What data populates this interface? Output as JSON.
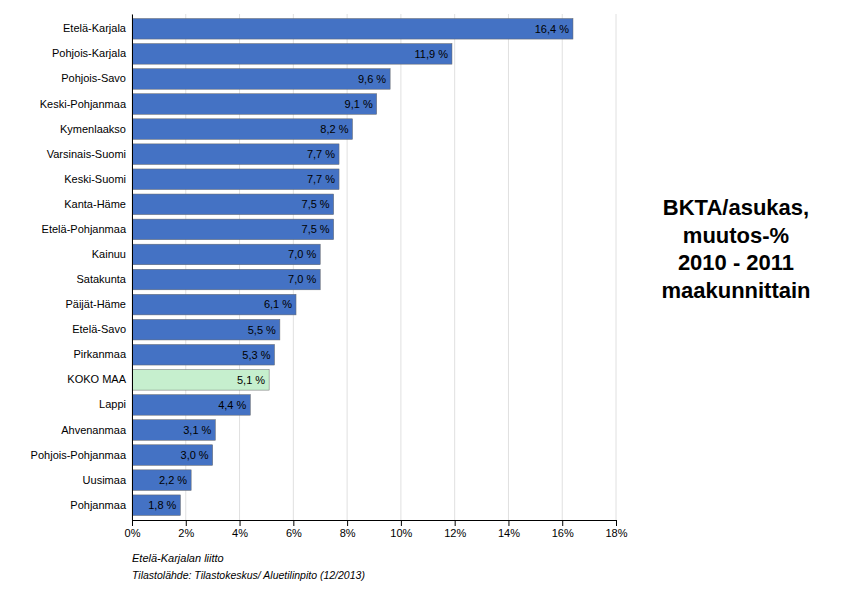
{
  "chart_data": {
    "type": "bar",
    "orientation": "horizontal",
    "title": "BKTA/asukas,\nmuutos-%\n2010 - 2011\nmaakunnittain",
    "annotations": [
      "Etelä-Karjalan liitto",
      "Tilastolähde: Tilastokeskus/ Aluetilinpito (12/2013)"
    ],
    "categories": [
      "Pohjanmaa",
      "Uusimaa",
      "Pohjois-Pohjanmaa",
      "Ahvenanmaa",
      "Lappi",
      "KOKO MAA",
      "Pirkanmaa",
      "Etelä-Savo",
      "Päijät-Häme",
      "Satakunta",
      "Kainuu",
      "Etelä-Pohjanmaa",
      "Kanta-Häme",
      "Keski-Suomi",
      "Varsinais-Suomi",
      "Kymenlaakso",
      "Keski-Pohjanmaa",
      "Pohjois-Savo",
      "Pohjois-Karjala",
      "Etelä-Karjala"
    ],
    "values": [
      1.8,
      2.2,
      3.0,
      3.1,
      4.4,
      5.1,
      5.3,
      5.5,
      6.1,
      7.0,
      7.0,
      7.5,
      7.5,
      7.7,
      7.7,
      8.2,
      9.1,
      9.6,
      11.9,
      16.4
    ],
    "value_labels": [
      "1,8 %",
      "2,2 %",
      "3,0 %",
      "3,1 %",
      "4,4 %",
      "5,1 %",
      "5,3 %",
      "5,5 %",
      "6,1 %",
      "7,0 %",
      "7,0 %",
      "7,5 %",
      "7,5 %",
      "7,7 %",
      "7,7 %",
      "8,2 %",
      "9,1 %",
      "9,6 %",
      "11,9 %",
      "16,4 %"
    ],
    "data_labels": true,
    "colors": [
      "#4472C4",
      "#4472C4",
      "#4472C4",
      "#4472C4",
      "#4472C4",
      "#C6EFCE",
      "#4472C4",
      "#4472C4",
      "#4472C4",
      "#4472C4",
      "#4472C4",
      "#4472C4",
      "#4472C4",
      "#4472C4",
      "#4472C4",
      "#4472C4",
      "#4472C4",
      "#4472C4",
      "#4472C4",
      "#4472C4"
    ],
    "xlim": [
      0,
      18
    ],
    "xticks": [
      {
        "value": 0,
        "label": "0%"
      },
      {
        "value": 2,
        "label": "2%"
      },
      {
        "value": 4,
        "label": "4%"
      },
      {
        "value": 6,
        "label": "6%"
      },
      {
        "value": 8,
        "label": "8%"
      },
      {
        "value": 10,
        "label": "10%"
      },
      {
        "value": 12,
        "label": "12%"
      },
      {
        "value": 14,
        "label": "14%"
      },
      {
        "value": 16,
        "label": "16%"
      },
      {
        "value": 18,
        "label": "18%"
      }
    ],
    "grid": true
  }
}
